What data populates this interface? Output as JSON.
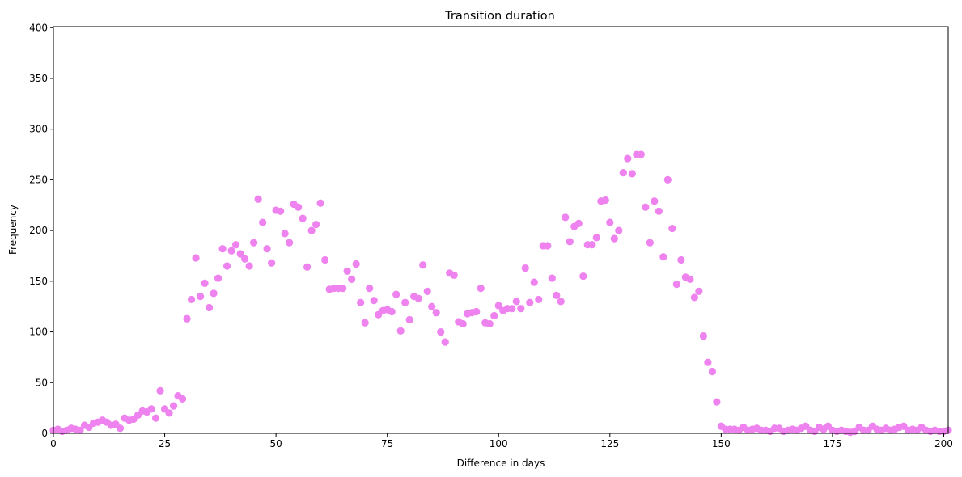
{
  "chart_data": {
    "type": "scatter",
    "title": "Transition duration",
    "xlabel": "Difference in days",
    "ylabel": "Frequency",
    "xlim": [
      0,
      201
    ],
    "ylim": [
      0,
      401
    ],
    "xticks": [
      0,
      25,
      50,
      75,
      100,
      125,
      150,
      175,
      200
    ],
    "yticks": [
      0,
      50,
      100,
      150,
      200,
      250,
      300,
      350,
      400
    ],
    "grid": false,
    "legend": "none",
    "marker_color": "#ee82ee",
    "series": [
      {
        "x": [
          0,
          1,
          2,
          3,
          4,
          5,
          6,
          7,
          8,
          9,
          10,
          11,
          12,
          13,
          14,
          15,
          16,
          17,
          18,
          19,
          20,
          21,
          22,
          23,
          24,
          25,
          26,
          27,
          28,
          29,
          30,
          31,
          32,
          33,
          34,
          35,
          36,
          37,
          38,
          39,
          40,
          41,
          42,
          43,
          44,
          45,
          46,
          47,
          48,
          49,
          50,
          51,
          52,
          53,
          54,
          55,
          56,
          57,
          58,
          59,
          60,
          61,
          62,
          63,
          64,
          65,
          66,
          67,
          68,
          69,
          70,
          71,
          72,
          73,
          74,
          75,
          76,
          77,
          78,
          79,
          80,
          81,
          82,
          83,
          84,
          85,
          86,
          87,
          88,
          89,
          90,
          91,
          92,
          93,
          94,
          95,
          96,
          97,
          98,
          99,
          100,
          101,
          102,
          103,
          104,
          105,
          106,
          107,
          108,
          109,
          110,
          111,
          112,
          113,
          114,
          115,
          116,
          117,
          118,
          119,
          120,
          121,
          122,
          123,
          124,
          125,
          126,
          127,
          128,
          129,
          130,
          131,
          132,
          133,
          134,
          135,
          136,
          137,
          138,
          139,
          140,
          141,
          142,
          143,
          144,
          145,
          146,
          147,
          148,
          149,
          150,
          151,
          152,
          153,
          154,
          155,
          156,
          157,
          158,
          159,
          160,
          161,
          162,
          163,
          164,
          165,
          166,
          167,
          168,
          169,
          170,
          171,
          172,
          173,
          174,
          175,
          176,
          177,
          178,
          179,
          180,
          181,
          182,
          183,
          184,
          185,
          186,
          187,
          188,
          189,
          190,
          191,
          192,
          193,
          194,
          195,
          196,
          197,
          198,
          199,
          200,
          201
        ],
        "y": [
          3,
          4,
          2,
          3,
          5,
          4,
          3,
          8,
          6,
          10,
          11,
          13,
          11,
          8,
          9,
          5,
          15,
          13,
          14,
          18,
          22,
          21,
          24,
          15,
          42,
          24,
          20,
          27,
          37,
          34,
          113,
          132,
          173,
          135,
          148,
          124,
          138,
          153,
          182,
          165,
          180,
          186,
          177,
          172,
          165,
          188,
          231,
          208,
          182,
          168,
          220,
          219,
          197,
          188,
          226,
          223,
          212,
          164,
          200,
          206,
          227,
          171,
          142,
          143,
          143,
          143,
          160,
          152,
          167,
          129,
          109,
          143,
          131,
          117,
          121,
          122,
          120,
          137,
          101,
          129,
          112,
          135,
          133,
          166,
          140,
          125,
          119,
          100,
          90,
          158,
          156,
          110,
          108,
          118,
          119,
          120,
          143,
          109,
          108,
          116,
          126,
          121,
          123,
          123,
          130,
          123,
          163,
          129,
          149,
          132,
          185,
          185,
          153,
          136,
          130,
          213,
          189,
          204,
          207,
          155,
          186,
          186,
          193,
          229,
          230,
          208,
          192,
          200,
          257,
          271,
          256,
          275,
          275,
          223,
          188,
          229,
          219,
          174,
          250,
          202,
          147,
          171,
          154,
          152,
          134,
          140,
          96,
          70,
          61,
          31,
          7,
          4,
          4,
          4,
          3,
          6,
          3,
          4,
          5,
          3,
          3,
          2,
          5,
          5,
          2,
          3,
          4,
          3,
          5,
          7,
          3,
          2,
          6,
          4,
          7,
          3,
          2,
          3,
          2,
          1,
          2,
          6,
          3,
          3,
          7,
          4,
          3,
          5,
          3,
          4,
          6,
          7,
          3,
          4,
          3,
          6,
          3,
          2,
          3,
          2,
          2,
          3
        ]
      }
    ]
  }
}
